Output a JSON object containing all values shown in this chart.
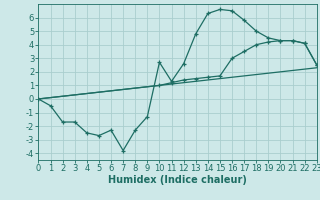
{
  "xlabel": "Humidex (Indice chaleur)",
  "xlim": [
    0,
    23
  ],
  "ylim": [
    -4.5,
    7.0
  ],
  "xticks": [
    0,
    1,
    2,
    3,
    4,
    5,
    6,
    7,
    8,
    9,
    10,
    11,
    12,
    13,
    14,
    15,
    16,
    17,
    18,
    19,
    20,
    21,
    22,
    23
  ],
  "yticks": [
    -4,
    -3,
    -2,
    -1,
    0,
    1,
    2,
    3,
    4,
    5,
    6
  ],
  "background_color": "#cde8e8",
  "grid_color": "#aacece",
  "line_color": "#1e6e64",
  "line1_x": [
    0,
    1,
    2,
    3,
    4,
    5,
    6,
    7,
    8,
    9,
    10,
    11,
    12,
    13,
    14,
    15,
    16,
    17,
    18,
    19,
    20,
    21,
    22,
    23
  ],
  "line1_y": [
    0.0,
    -0.5,
    -1.7,
    -1.7,
    -2.5,
    -2.7,
    -2.3,
    -3.8,
    -2.3,
    -1.3,
    2.7,
    1.3,
    2.6,
    4.8,
    6.3,
    6.6,
    6.5,
    5.8,
    5.0,
    4.5,
    4.3,
    4.3,
    4.1,
    2.5
  ],
  "line2_x": [
    0,
    10,
    11,
    12,
    13,
    14,
    15,
    16,
    17,
    18,
    19,
    20,
    21,
    22,
    23
  ],
  "line2_y": [
    0.0,
    1.0,
    1.2,
    1.4,
    1.5,
    1.6,
    1.7,
    3.0,
    3.5,
    4.0,
    4.2,
    4.3,
    4.3,
    4.1,
    2.5
  ],
  "line3_x": [
    0,
    23
  ],
  "line3_y": [
    0.0,
    2.3
  ],
  "tick_fontsize": 6,
  "xlabel_fontsize": 7
}
